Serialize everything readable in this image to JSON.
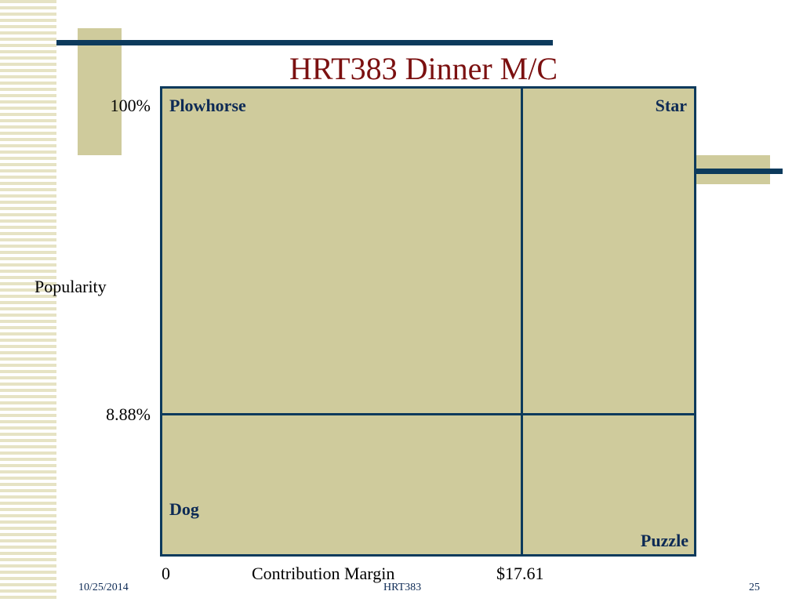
{
  "title": "HRT383 Dinner M/C",
  "y_axis": {
    "top_label": "100%",
    "label": "Popularity",
    "threshold_label": "8.88%"
  },
  "x_axis": {
    "start_label": "0",
    "label": "Contribution Margin",
    "threshold_label": "$17.61"
  },
  "quadrants": {
    "top_left": "Plowhorse",
    "top_right": "Star",
    "bottom_left": "Dog",
    "bottom_right": "Puzzle"
  },
  "footer": {
    "date": "10/25/2014",
    "course": "HRT383",
    "page": "25"
  }
}
